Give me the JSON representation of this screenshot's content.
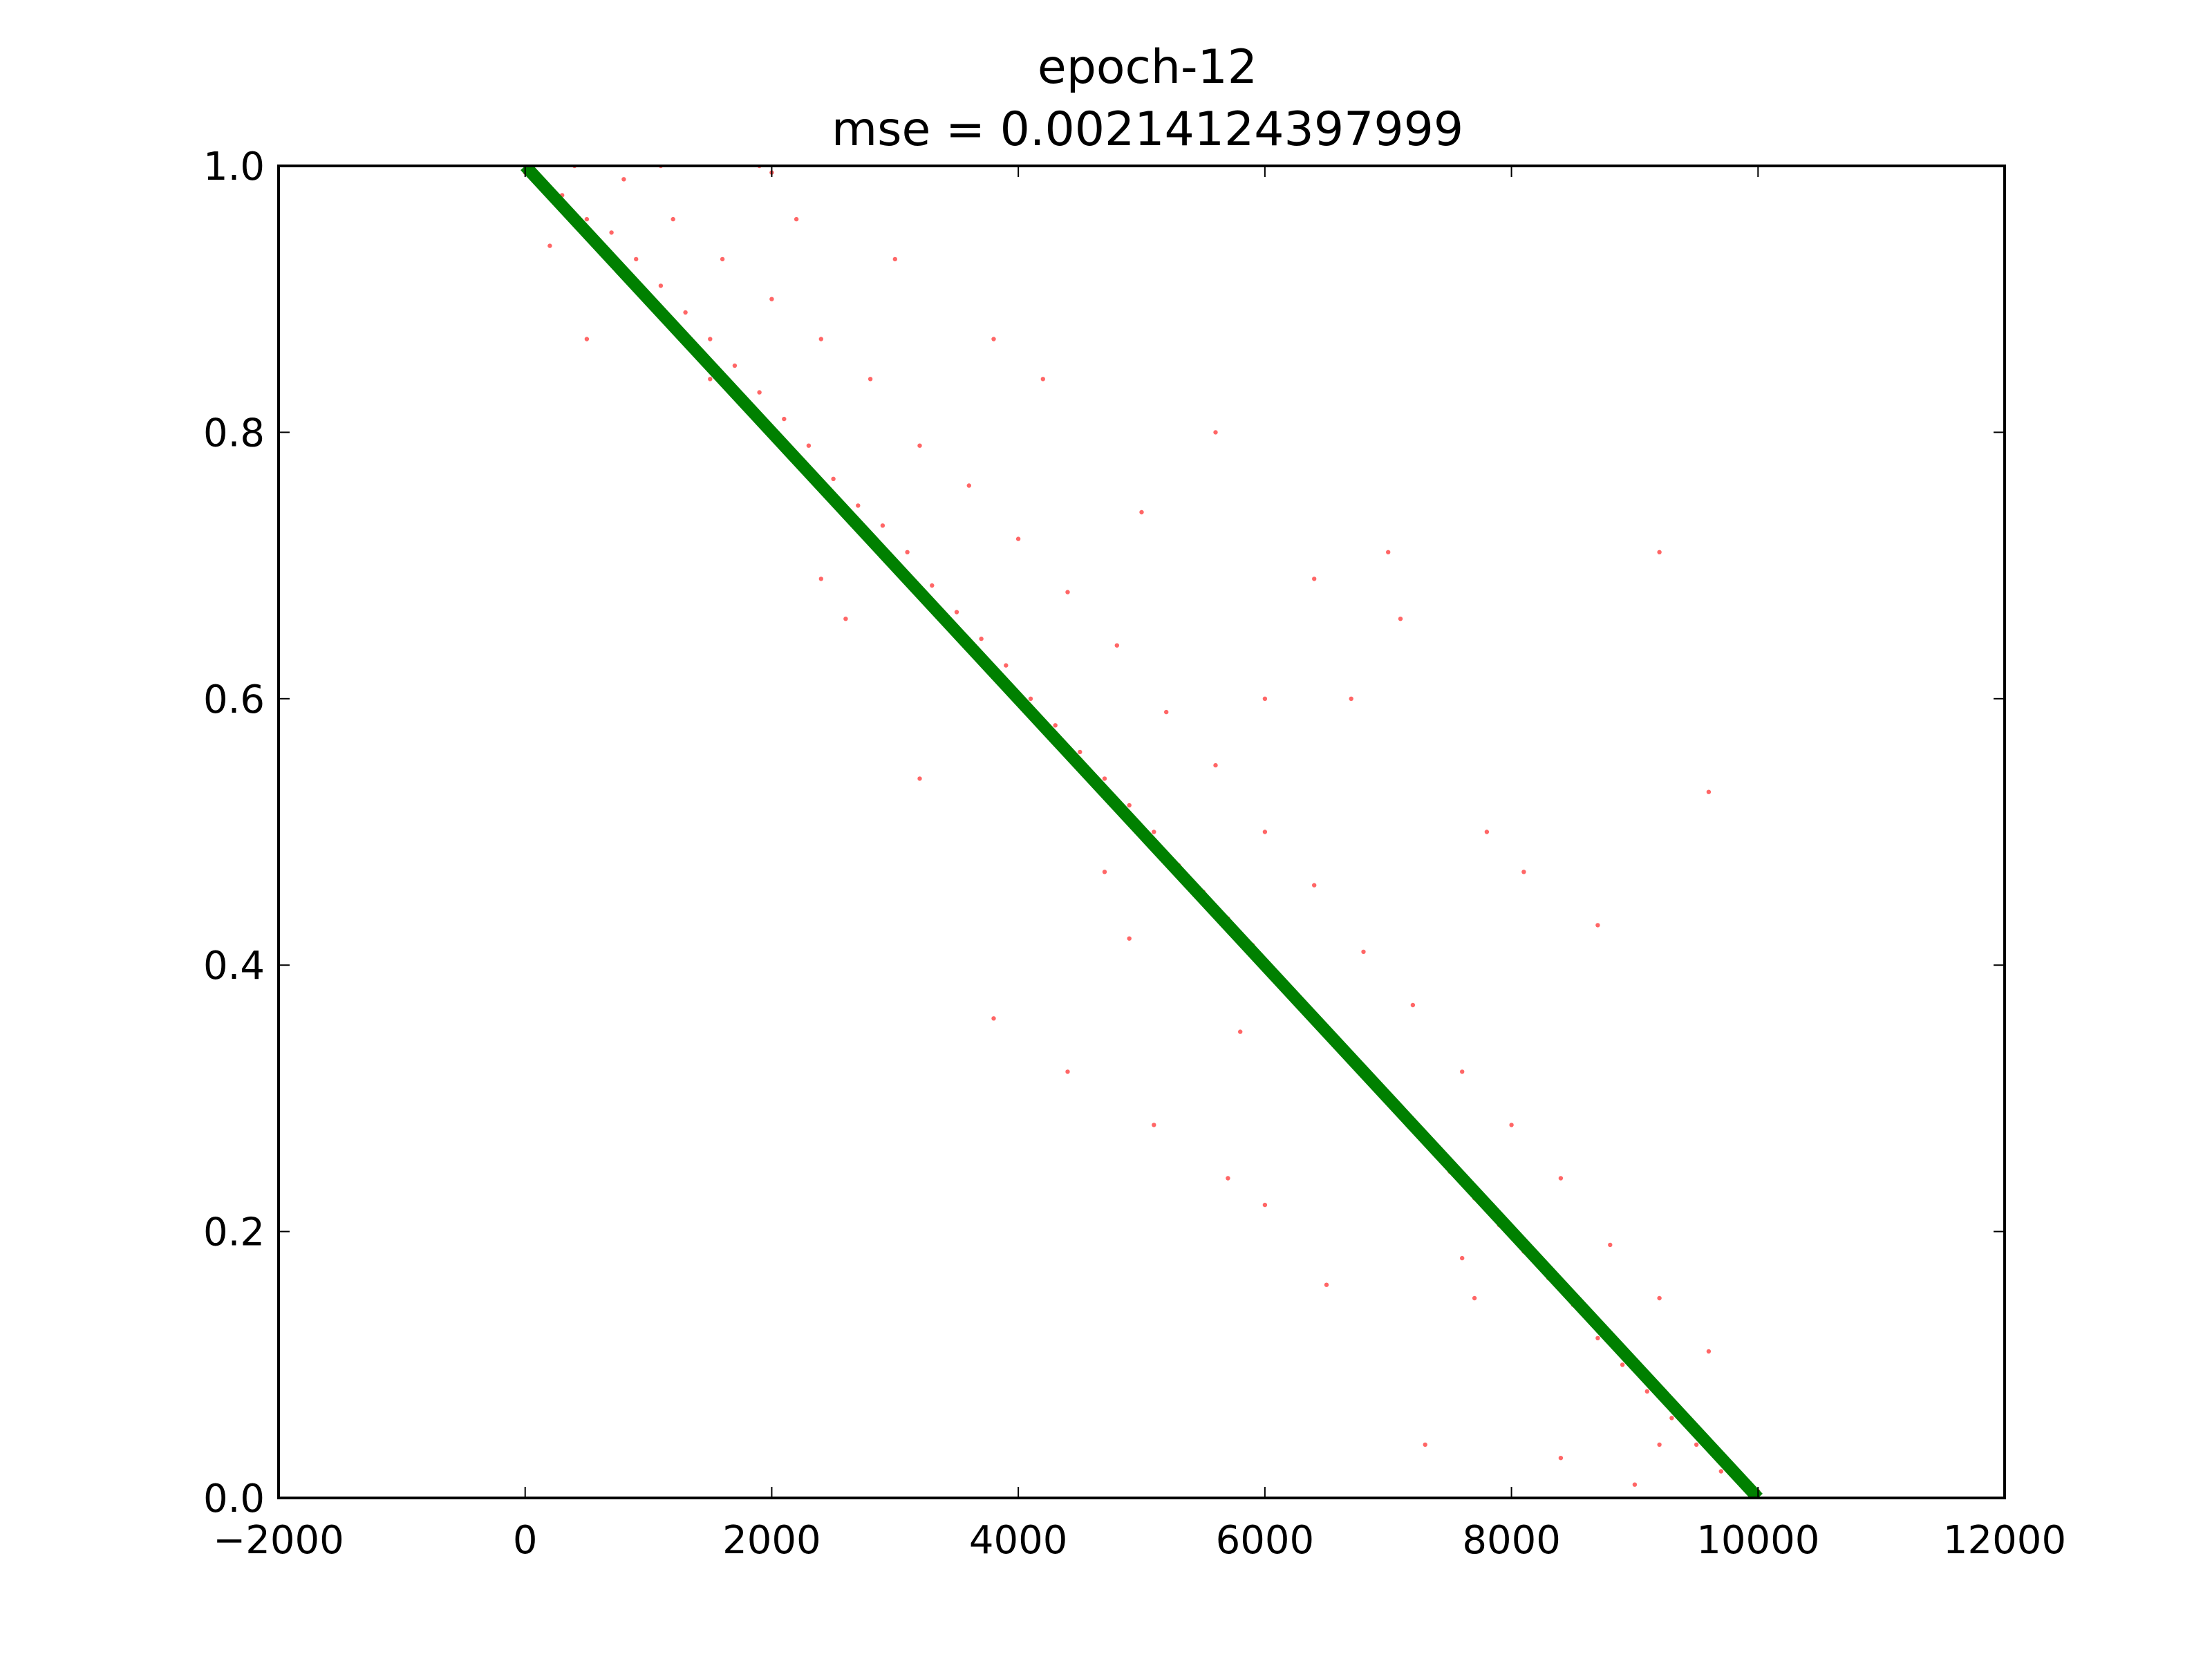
{
  "chart_data": {
    "type": "scatter",
    "title": [
      "epoch-12",
      "mse = 0.00214124397999"
    ],
    "xlabel": "",
    "ylabel": "",
    "xlim": [
      -2000,
      12000
    ],
    "ylim": [
      0.0,
      1.0
    ],
    "xticks": [
      -2000,
      0,
      2000,
      4000,
      6000,
      8000,
      10000,
      12000
    ],
    "xtick_labels": [
      "−2000",
      "0",
      "2000",
      "4000",
      "6000",
      "8000",
      "10000",
      "12000"
    ],
    "yticks": [
      0.0,
      0.2,
      0.4,
      0.6,
      0.8,
      1.0
    ],
    "ytick_labels": [
      "0.0",
      "0.2",
      "0.4",
      "0.6",
      "0.8",
      "1.0"
    ],
    "grid": false,
    "legend": "none",
    "series": [
      {
        "type": "scatter",
        "color": "#ff0000",
        "points": [
          [
            0,
            0.995
          ],
          [
            150,
            0.985
          ],
          [
            300,
            0.978
          ],
          [
            500,
            0.96
          ],
          [
            700,
            0.95
          ],
          [
            900,
            0.93
          ],
          [
            1100,
            0.91
          ],
          [
            1300,
            0.89
          ],
          [
            1500,
            0.87
          ],
          [
            1700,
            0.85
          ],
          [
            1900,
            0.83
          ],
          [
            2100,
            0.81
          ],
          [
            2300,
            0.79
          ],
          [
            2500,
            0.765
          ],
          [
            2700,
            0.745
          ],
          [
            2900,
            0.73
          ],
          [
            3100,
            0.71
          ],
          [
            3300,
            0.685
          ],
          [
            3500,
            0.665
          ],
          [
            3700,
            0.645
          ],
          [
            3900,
            0.625
          ],
          [
            4100,
            0.6
          ],
          [
            4300,
            0.58
          ],
          [
            4500,
            0.56
          ],
          [
            4700,
            0.54
          ],
          [
            4900,
            0.52
          ],
          [
            5100,
            0.5
          ],
          [
            5300,
            0.475
          ],
          [
            5500,
            0.455
          ],
          [
            5700,
            0.435
          ],
          [
            5900,
            0.415
          ],
          [
            6100,
            0.39
          ],
          [
            6300,
            0.37
          ],
          [
            6500,
            0.35
          ],
          [
            6700,
            0.33
          ],
          [
            6900,
            0.31
          ],
          [
            7100,
            0.29
          ],
          [
            7300,
            0.27
          ],
          [
            7500,
            0.245
          ],
          [
            7700,
            0.225
          ],
          [
            7900,
            0.205
          ],
          [
            8100,
            0.185
          ],
          [
            8300,
            0.165
          ],
          [
            8500,
            0.145
          ],
          [
            8700,
            0.12
          ],
          [
            8900,
            0.1
          ],
          [
            9100,
            0.08
          ],
          [
            9300,
            0.06
          ],
          [
            9500,
            0.04
          ],
          [
            9700,
            0.02
          ],
          [
            9900,
            0.01
          ],
          [
            10000,
            0.005
          ],
          [
            400,
            1.0
          ],
          [
            800,
            0.99
          ],
          [
            1200,
            0.96
          ],
          [
            1600,
            0.93
          ],
          [
            2000,
            0.9
          ],
          [
            2400,
            0.87
          ],
          [
            2800,
            0.84
          ],
          [
            3200,
            0.79
          ],
          [
            3600,
            0.76
          ],
          [
            4000,
            0.72
          ],
          [
            4400,
            0.68
          ],
          [
            4800,
            0.64
          ],
          [
            5200,
            0.59
          ],
          [
            5600,
            0.55
          ],
          [
            6000,
            0.5
          ],
          [
            6400,
            0.46
          ],
          [
            6800,
            0.41
          ],
          [
            7200,
            0.37
          ],
          [
            7600,
            0.32
          ],
          [
            8000,
            0.28
          ],
          [
            8400,
            0.24
          ],
          [
            8800,
            0.19
          ],
          [
            9200,
            0.15
          ],
          [
            9600,
            0.11
          ],
          [
            3000,
            0.93
          ],
          [
            4200,
            0.84
          ],
          [
            5600,
            0.8
          ],
          [
            7000,
            0.71
          ],
          [
            9200,
            0.71
          ],
          [
            6400,
            0.69
          ],
          [
            7100,
            0.66
          ],
          [
            8100,
            0.47
          ],
          [
            8700,
            0.43
          ],
          [
            9600,
            0.53
          ],
          [
            6000,
            0.6
          ],
          [
            3800,
            0.87
          ],
          [
            5000,
            0.74
          ],
          [
            2200,
            0.96
          ],
          [
            6700,
            0.6
          ],
          [
            7800,
            0.5
          ],
          [
            1100,
            1.0
          ],
          [
            1900,
            1.0
          ],
          [
            2000,
            0.995
          ],
          [
            3800,
            0.36
          ],
          [
            4400,
            0.32
          ],
          [
            5100,
            0.28
          ],
          [
            6000,
            0.22
          ],
          [
            6500,
            0.16
          ],
          [
            8400,
            0.03
          ],
          [
            9000,
            0.01
          ],
          [
            9200,
            0.04
          ],
          [
            7600,
            0.18
          ],
          [
            5700,
            0.24
          ],
          [
            3200,
            0.54
          ],
          [
            2400,
            0.69
          ],
          [
            1500,
            0.84
          ],
          [
            500,
            0.87
          ],
          [
            200,
            0.94
          ],
          [
            4700,
            0.47
          ],
          [
            2600,
            0.66
          ],
          [
            7300,
            0.04
          ],
          [
            7700,
            0.15
          ],
          [
            5800,
            0.35
          ],
          [
            4900,
            0.42
          ]
        ]
      },
      {
        "type": "line",
        "color": "#008000",
        "points": [
          [
            0,
            1.0
          ],
          [
            10000,
            0.0
          ]
        ]
      }
    ]
  }
}
